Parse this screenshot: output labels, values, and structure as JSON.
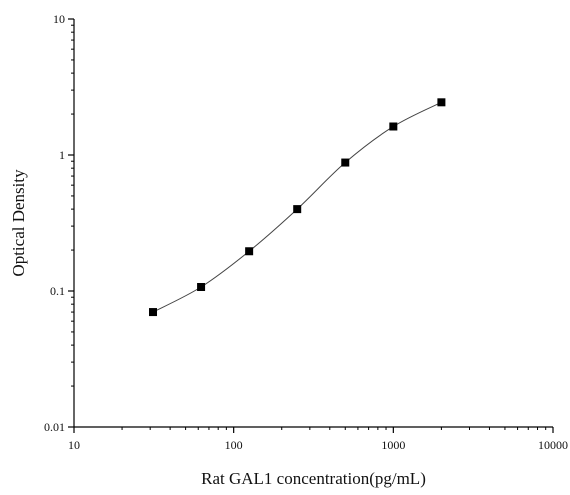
{
  "chart_data": {
    "type": "scatter",
    "title": "",
    "xlabel": "Rat GAL1 concentration(pg/mL)",
    "ylabel": "Optical Density",
    "x_scale": "log",
    "y_scale": "log",
    "xlim": [
      10,
      10000
    ],
    "ylim": [
      0.01,
      10
    ],
    "x_ticks": [
      {
        "value": 10,
        "label": "10"
      },
      {
        "value": 100,
        "label": "100"
      },
      {
        "value": 1000,
        "label": "1000"
      },
      {
        "value": 10000,
        "label": "10000"
      }
    ],
    "y_ticks": [
      {
        "value": 0.01,
        "label": "0.01"
      },
      {
        "value": 0.1,
        "label": "0.1"
      },
      {
        "value": 1,
        "label": "1"
      },
      {
        "value": 10,
        "label": "10"
      }
    ],
    "grid": false,
    "legend": "none",
    "series": [
      {
        "x": [
          31.25,
          62.5,
          125,
          250,
          500,
          1000,
          2000
        ],
        "y": [
          0.07,
          0.107,
          0.196,
          0.4,
          0.88,
          1.62,
          2.44
        ],
        "marker": "square",
        "connected": true,
        "color": "#000000"
      }
    ]
  }
}
